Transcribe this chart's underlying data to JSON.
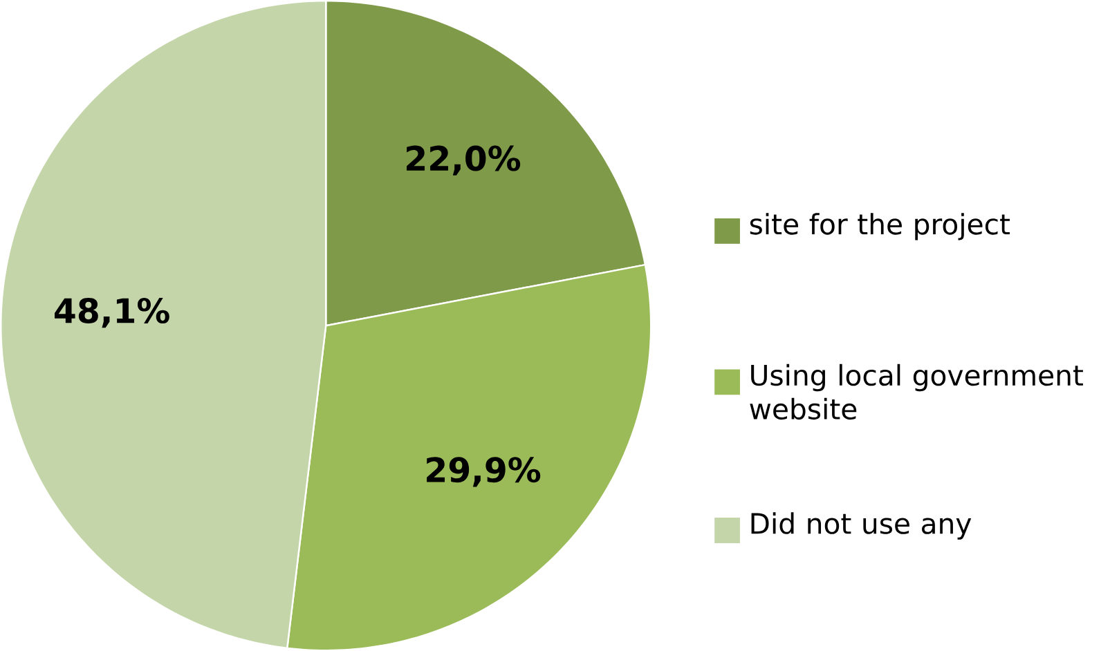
{
  "chart_data": {
    "type": "pie",
    "categories": [
      "site for the project",
      "Using local government website",
      "Did not use any"
    ],
    "values": [
      22.0,
      29.9,
      48.1
    ],
    "colors": [
      "#7f9a48",
      "#9bbb59",
      "#c4d6a9"
    ],
    "value_labels": [
      "22,0%",
      "29,9%",
      "48,1%"
    ],
    "legend": "right"
  }
}
